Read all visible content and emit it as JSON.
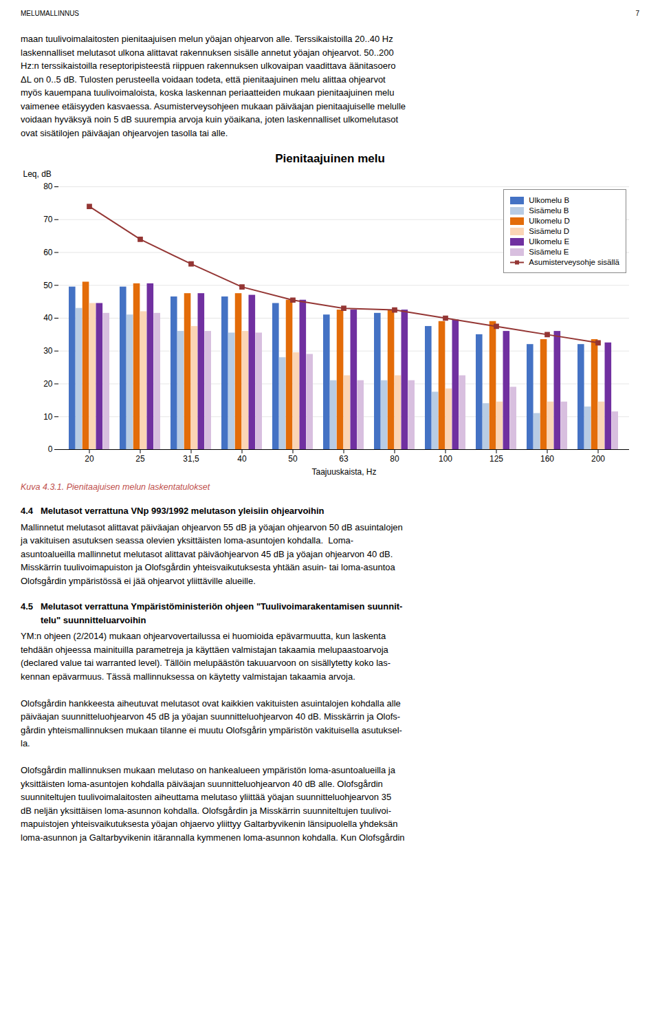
{
  "chart_data": {
    "type": "bar",
    "title": "Pienitaajuinen melu",
    "xlabel": "Taajuuskaista, Hz",
    "ylabel": "Leq, dB",
    "categories": [
      "20",
      "25",
      "31,5",
      "40",
      "50",
      "63",
      "80",
      "100",
      "125",
      "160",
      "200"
    ],
    "series": [
      {
        "name": "Ulkomelu B",
        "color": "#4472C4",
        "values": [
          49.5,
          49.5,
          46.5,
          46.5,
          44.5,
          41.0,
          41.5,
          37.5,
          35.0,
          32.0,
          32.0
        ]
      },
      {
        "name": "Sisämelu B",
        "color": "#B8CCE4",
        "values": [
          43.0,
          41.0,
          36.0,
          35.5,
          28.0,
          21.0,
          21.0,
          17.5,
          14.0,
          11.0,
          13.0
        ]
      },
      {
        "name": "Ulkomelu D",
        "color": "#E36C09",
        "values": [
          51.0,
          50.5,
          47.5,
          47.5,
          45.5,
          42.5,
          42.5,
          39.0,
          39.0,
          33.5,
          33.5
        ]
      },
      {
        "name": "Sisämelu D",
        "color": "#FBD5B5",
        "values": [
          44.5,
          42.0,
          37.5,
          36.0,
          29.5,
          22.5,
          22.5,
          18.5,
          14.5,
          14.5,
          14.5
        ]
      },
      {
        "name": "Ulkomelu E",
        "color": "#7030A0",
        "values": [
          44.5,
          50.5,
          47.5,
          47.0,
          45.5,
          42.5,
          42.5,
          39.5,
          36.0,
          36.0,
          32.5
        ]
      },
      {
        "name": "Sisämelu E",
        "color": "#D8BFDF",
        "values": [
          41.5,
          41.5,
          36.0,
          35.5,
          29.0,
          21.0,
          21.0,
          22.5,
          19.0,
          14.5,
          11.5
        ]
      },
      {
        "name": "Asumisterveysohje sisällä",
        "type": "line",
        "marker": "square",
        "color": "#943634",
        "values": [
          74.0,
          64.0,
          56.5,
          49.5,
          45.5,
          43.0,
          42.5,
          40.0,
          37.5,
          35.0,
          32.5
        ]
      }
    ],
    "ylim": [
      0,
      80
    ],
    "yticks": [
      0,
      10,
      20,
      30,
      40,
      50,
      60,
      70,
      80
    ],
    "grid": true,
    "legend": "upper right",
    "annotations": [
      "MELUMALLINNUS",
      "7",
      "maan tuulivoimalaitosten pienitaajuisen melun yöajan ohjearvon alle. Terssikaistoilla 20..40 Hz\nlaskennalliset melutasot ulkona alittavat rakennuksen sisälle annetut yöajan ohjearvot. 50..200\nHz:n terssikaistoilla reseptoripisteestä riippuen rakennuksen ulkovaipan vaadittava äänitasoero\nΔL on 0..5 dB. Tulosten perusteella voidaan todeta, että pienitaajuinen melu alittaa ohjearvot\nmyös kauempana tuulivoimaloista, koska laskennan periaatteiden mukaan pienitaajuinen melu\nvaimenee etäisyyden kasvaessa. Asumisterveysohjeen mukaan päiväajan pienitaajuiselle melulle\nvoidaan hyväksyä noin 5 dB suurempia arvoja kuin yöaikana, joten laskennalliset ulkomelutasot\novat sisätilojen päiväajan ohjearvojen tasolla tai alle.",
      "Kuva 4.3.1. Pienitaajuisen melun laskentatulokset",
      "4.4\tMelutasot verrattuna VNp 993/1992 melutason yleisiin ohjearvoihin",
      "Mallinnetut melutasot alittavat päiväajan ohjearvon 55 dB ja yöajan ohjearvon 50 dB asuintalojen\nja vakituisen asutuksen seassa olevien yksittäisten loma-asuntojen kohdalla.  Loma-\nasuntoalueilla mallinnetut melutasot alittavat päiväohjearvon 45 dB ja yöajan ohjearvon 40 dB.\nMisskärrin tuulivoimapuiston ja Olofsgårdin yhteisvaikutuksesta yhtään asuin- tai loma-asuntoa\nOlofsgårdin ympäristössä ei jää ohjearvot yliittäville alueille.",
      "4.5\tMelutasot verrattuna Ympäristöministeriön ohjeen \"Tuulivoimarakentamisen suunnit-\n\t\ttelu\" suunnitteluarvoihin",
      "YM:n ohjeen (2/2014) mukaan ohjearvovertailussa ei huomioida epävarmuutta, kun laskenta\ntehdään ohjeessa mainituilla parametreja ja käyttäen valmistajan takaamia melupaastoarvoja\n(declared value tai warranted level). Tällöin melupäästön takuuarvoon on sisällytetty koko las-\nkennan epävarmuus. Tässä mallinnuksessa on käytetty valmistajan takaamia arvoja.\n\nOlofsgårdin hankkeesta aiheutuvat melutasot ovat kaikkien vakituisten asuintalojen kohdalla alle\npäiväajan suunnitteluohjearvon 45 dB ja yöajan suunnitteluohjearvon 40 dB. Misskärrin ja Olofs-\ngårdin yhteismallinnuksen mukaan tilanne ei muutu Olofsgårin ympäristön vakituisella asutuksel-\nla.\n\nOlofsgårdin mallinnuksen mukaan melutaso on hankealueen ympäristön loma-asuntoalueilla ja\nyksittäisten loma-asuntojen kohdalla päiväajan suunnitteluohjearvon 40 dB alle. Olofsgårdin\nsuunniteltujen tuulivoimalaitosten aiheuttama melutaso yliittää yöajan suunnitteluohjearvon 35\ndB neljän yksittäisen loma-asunnon kohdalla. Olofsgårdin ja Misskärrin suunniteltujen tuulivoi-\nmapuistojen yhteisvaikutuksesta yöajan ohjaervo yliittyy Galtarbyvikenin länsipuolella yhdeksän\nloma-asunnon ja Galtarbyvikenin itärannalla kymmenen loma-asunnon kohdalla. Kun Olofsgårdin"
    ]
  }
}
